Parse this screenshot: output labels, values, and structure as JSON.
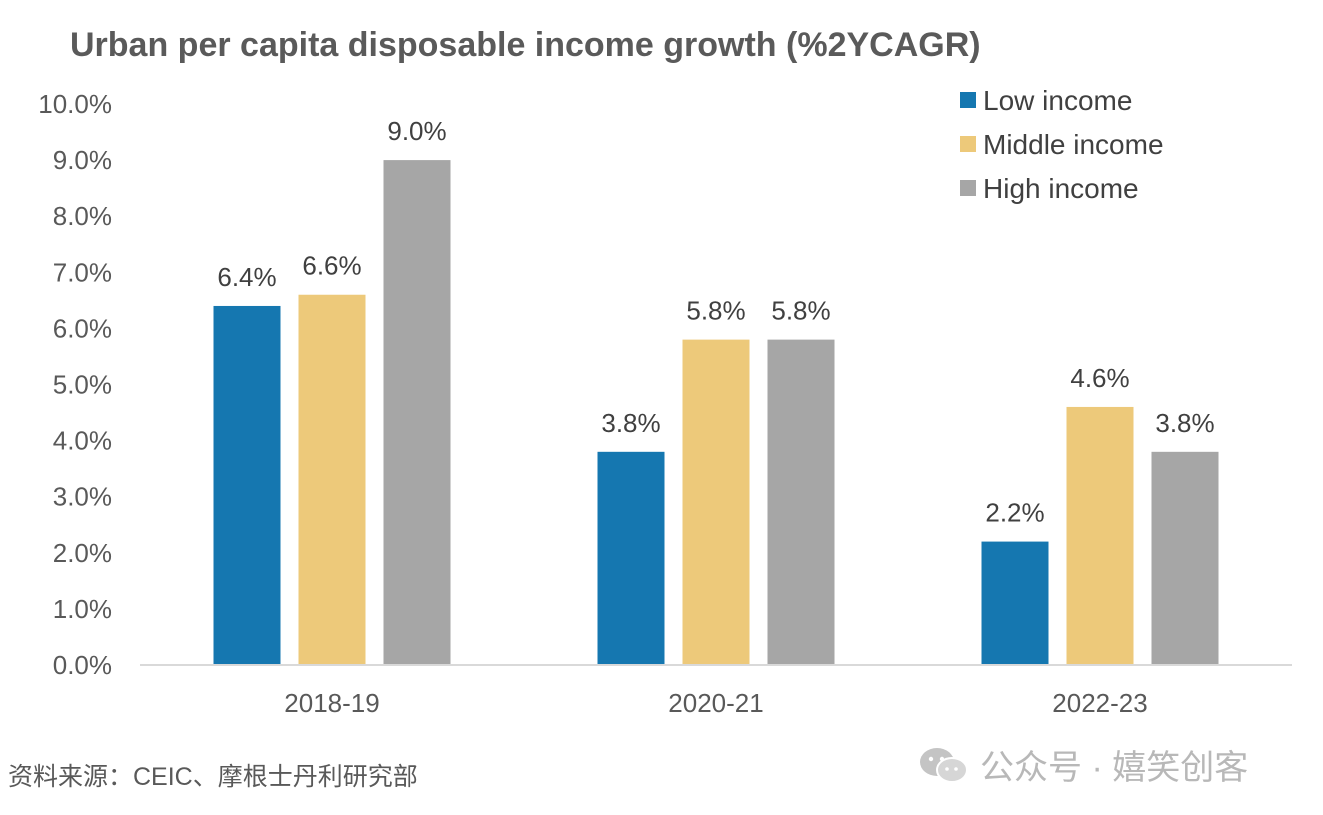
{
  "chart_data": {
    "type": "bar",
    "title": "Urban per capita disposable income growth (%2YCAGR)",
    "categories": [
      "2018-19",
      "2020-21",
      "2022-23"
    ],
    "series": [
      {
        "name": "Low income",
        "values": [
          6.4,
          3.8,
          2.2
        ],
        "labels": [
          "6.4%",
          "3.8%",
          "2.2%"
        ],
        "color": "#1577b0"
      },
      {
        "name": "Middle income",
        "values": [
          6.6,
          5.8,
          4.6
        ],
        "labels": [
          "6.6%",
          "5.8%",
          "4.6%"
        ],
        "color": "#edc97a"
      },
      {
        "name": "High income",
        "values": [
          9.0,
          5.8,
          3.8
        ],
        "labels": [
          "9.0%",
          "5.8%",
          "3.8%"
        ],
        "color": "#a6a6a6"
      }
    ],
    "ylim": [
      0,
      10
    ],
    "yticks": [
      0,
      1,
      2,
      3,
      4,
      5,
      6,
      7,
      8,
      9,
      10
    ],
    "ytick_labels": [
      "0.0%",
      "1.0%",
      "2.0%",
      "3.0%",
      "4.0%",
      "5.0%",
      "6.0%",
      "7.0%",
      "8.0%",
      "9.0%",
      "10.0%"
    ],
    "xlabel": "",
    "ylabel": "",
    "grid": false,
    "legend_position": "top-right"
  },
  "source_note": "资料来源：CEIC、摩根士丹利研究部",
  "watermark": "公众号 · 嬉笑创客",
  "watermark_icon": "wechat-icon"
}
